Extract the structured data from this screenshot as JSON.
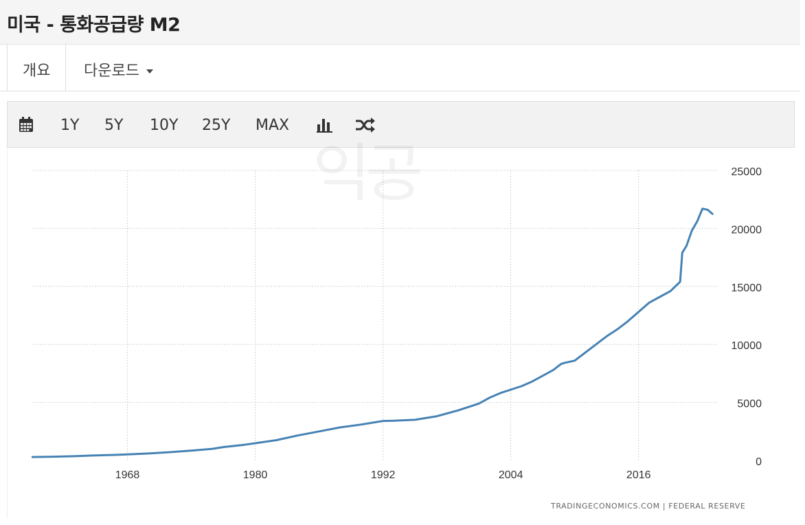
{
  "header": {
    "title": "미국 - 통화공급량 M2"
  },
  "tabs": {
    "overview": "개요",
    "download": "다운로드"
  },
  "toolbar": {
    "calendar_icon": "calendar-icon",
    "ranges": [
      "1Y",
      "5Y",
      "10Y",
      "25Y",
      "MAX"
    ],
    "bar_icon": "bar-chart-icon",
    "shuffle_icon": "shuffle-icon"
  },
  "watermark": "익공",
  "credit": "TRADINGECONOMICS.COM  |  FEDERAL RESERVE",
  "colors": {
    "line": "#4682b4",
    "grid": "#d4d4d4"
  },
  "chart_data": {
    "type": "line",
    "title": "미국 - 통화공급량 M2",
    "xlabel": "",
    "ylabel": "",
    "xlim": [
      1959.0,
      2023.5
    ],
    "ylim": [
      0,
      25000
    ],
    "x_ticks": [
      1968,
      1980,
      1992,
      2004,
      2016
    ],
    "y_ticks": [
      0,
      5000,
      10000,
      15000,
      20000,
      25000
    ],
    "grid": true,
    "legend": "none",
    "series": [
      {
        "name": "M2",
        "points": [
          [
            1959.0,
            290
          ],
          [
            1961,
            320
          ],
          [
            1963,
            360
          ],
          [
            1965,
            430
          ],
          [
            1967,
            480
          ],
          [
            1968,
            520
          ],
          [
            1970,
            600
          ],
          [
            1972,
            710
          ],
          [
            1974,
            850
          ],
          [
            1976,
            1000
          ],
          [
            1977,
            1150
          ],
          [
            1979,
            1350
          ],
          [
            1980,
            1480
          ],
          [
            1982,
            1750
          ],
          [
            1984,
            2150
          ],
          [
            1986,
            2500
          ],
          [
            1988,
            2850
          ],
          [
            1990,
            3100
          ],
          [
            1992,
            3400
          ],
          [
            1993,
            3420
          ],
          [
            1995,
            3500
          ],
          [
            1997,
            3800
          ],
          [
            1999,
            4300
          ],
          [
            2001,
            4900
          ],
          [
            2002,
            5400
          ],
          [
            2003,
            5800
          ],
          [
            2004,
            6100
          ],
          [
            2005,
            6400
          ],
          [
            2006,
            6800
          ],
          [
            2007,
            7300
          ],
          [
            2008,
            7800
          ],
          [
            2008.7,
            8300
          ],
          [
            2009,
            8400
          ],
          [
            2010,
            8600
          ],
          [
            2011,
            9300
          ],
          [
            2012,
            10000
          ],
          [
            2013,
            10700
          ],
          [
            2014,
            11300
          ],
          [
            2015,
            12000
          ],
          [
            2016,
            12800
          ],
          [
            2017,
            13600
          ],
          [
            2018,
            14100
          ],
          [
            2019,
            14600
          ],
          [
            2019.9,
            15400
          ],
          [
            2020.1,
            17900
          ],
          [
            2020.5,
            18500
          ],
          [
            2021,
            19800
          ],
          [
            2021.5,
            20600
          ],
          [
            2022.0,
            21700
          ],
          [
            2022.5,
            21600
          ],
          [
            2023.0,
            21200
          ]
        ]
      }
    ]
  }
}
